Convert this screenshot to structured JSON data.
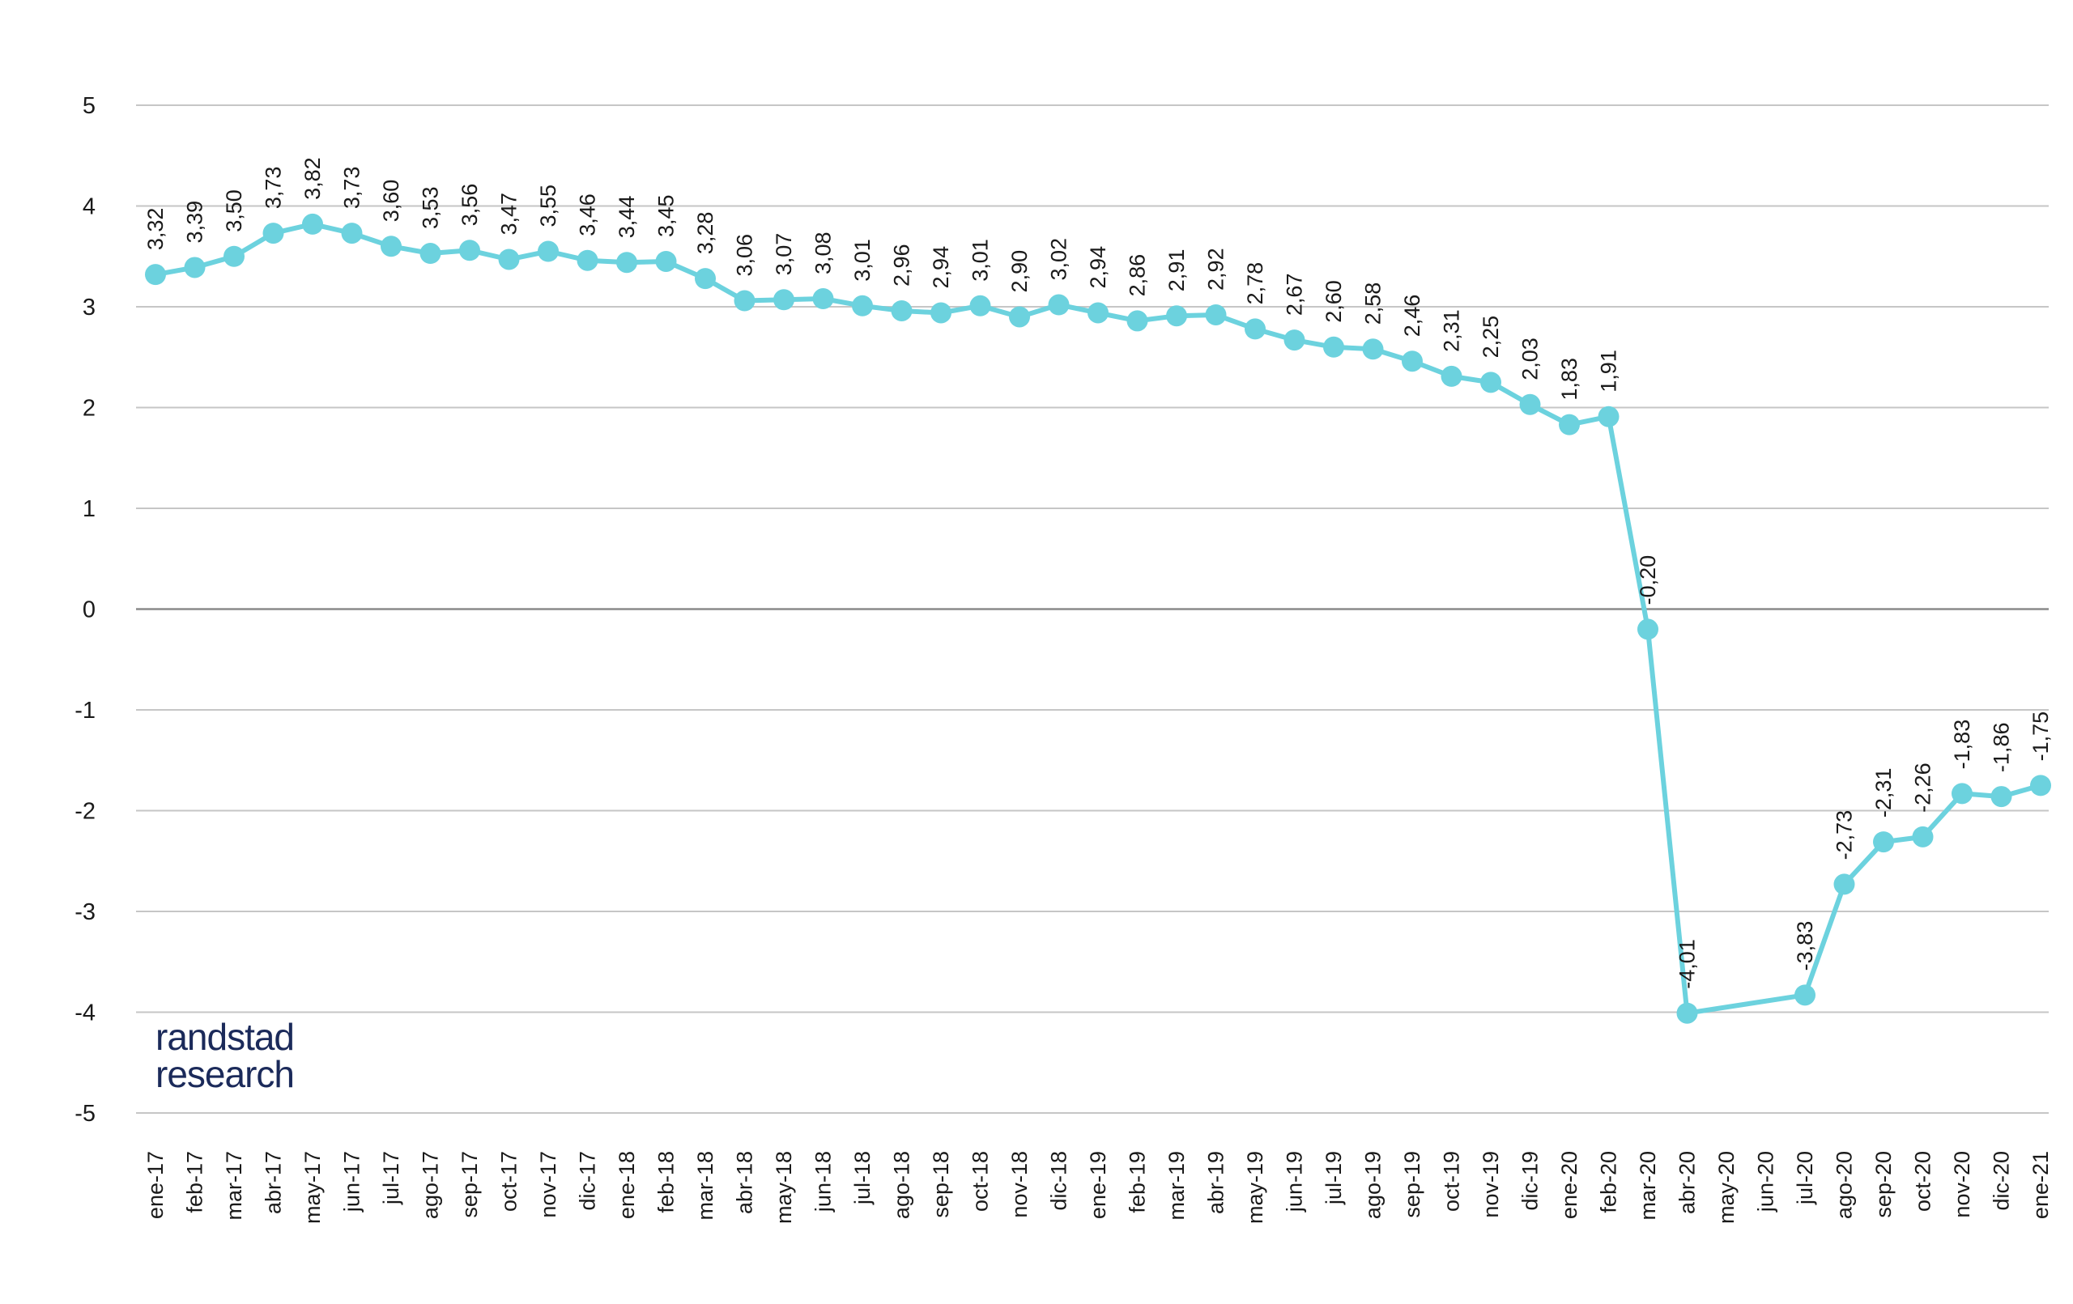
{
  "brand": {
    "line1": "randstad",
    "line2": "research"
  },
  "colors": {
    "series": "#6cd2de",
    "grid": "#c6c6c6",
    "zero_line": "#8a8a8a",
    "brand": "#1b2a5a"
  },
  "chart_data": {
    "type": "line",
    "title": "",
    "xlabel": "",
    "ylabel": "",
    "ylim": [
      -5,
      5
    ],
    "yticks": [
      5,
      4,
      3,
      2,
      1,
      0,
      -1,
      -2,
      -3,
      -4,
      -5
    ],
    "grid": true,
    "categories": [
      "ene-17",
      "feb-17",
      "mar-17",
      "abr-17",
      "may-17",
      "jun-17",
      "jul-17",
      "ago-17",
      "sep-17",
      "oct-17",
      "nov-17",
      "dic-17",
      "ene-18",
      "feb-18",
      "mar-18",
      "abr-18",
      "may-18",
      "jun-18",
      "jul-18",
      "ago-18",
      "sep-18",
      "oct-18",
      "nov-18",
      "dic-18",
      "ene-19",
      "feb-19",
      "mar-19",
      "abr-19",
      "may-19",
      "jun-19",
      "jul-19",
      "ago-19",
      "sep-19",
      "oct-19",
      "nov-19",
      "dic-19",
      "ene-20",
      "feb-20",
      "mar-20",
      "abr-20",
      "may-20",
      "jun-20",
      "jul-20",
      "ago-20",
      "sep-20",
      "oct-20",
      "nov-20",
      "dic-20",
      "ene-21"
    ],
    "series": [
      {
        "values": [
          3.32,
          3.39,
          3.5,
          3.73,
          3.82,
          3.73,
          3.6,
          3.53,
          3.56,
          3.47,
          3.55,
          3.46,
          3.44,
          3.45,
          3.28,
          3.06,
          3.07,
          3.08,
          3.01,
          2.96,
          2.94,
          3.01,
          2.9,
          3.02,
          2.94,
          2.86,
          2.91,
          2.92,
          2.78,
          2.67,
          2.6,
          2.58,
          2.46,
          2.31,
          2.25,
          2.03,
          1.83,
          1.91,
          -0.2,
          -4.01,
          null,
          null,
          -3.83,
          -2.73,
          -2.31,
          -2.26,
          -1.83,
          -1.86,
          -1.75
        ],
        "labels": [
          "3,32",
          "3,39",
          "3,50",
          "3,73",
          "3,82",
          "3,73",
          "3,60",
          "3,53",
          "3,56",
          "3,47",
          "3,55",
          "3,46",
          "3,44",
          "3,45",
          "3,28",
          "3,06",
          "3,07",
          "3,08",
          "3,01",
          "2,96",
          "2,94",
          "3,01",
          "2,90",
          "3,02",
          "2,94",
          "2,86",
          "2,91",
          "2,92",
          "2,78",
          "2,67",
          "2,60",
          "2,58",
          "2,46",
          "2,31",
          "2,25",
          "2,03",
          "1,83",
          "1,91",
          "-0,20",
          "-4,01",
          null,
          null,
          "-3,83",
          "-2,73",
          "-2,31",
          "-2,26",
          "-1,83",
          "-1,86",
          "-1,75"
        ]
      }
    ]
  }
}
